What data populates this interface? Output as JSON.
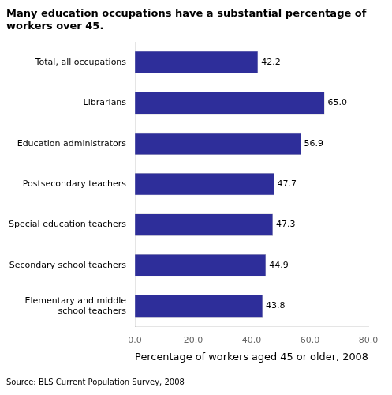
{
  "chart_data": {
    "type": "bar",
    "orientation": "horizontal",
    "title": "Many education occupations have a substantial percentage of\nworkers over 45.",
    "categories": [
      "Elementary and middle\nschool teachers",
      "Secondary school teachers",
      "Special education teachers",
      "Postsecondary teachers",
      "Education administrators",
      "Librarians",
      "Total, all occupations"
    ],
    "values": [
      43.8,
      44.9,
      47.3,
      47.7,
      56.9,
      65.0,
      42.2
    ],
    "value_labels": [
      "43.8",
      "44.9",
      "47.3",
      "47.7",
      "56.9",
      "65.0",
      "42.2"
    ],
    "color": "#2E2E9A",
    "xlabel": "Percentage of workers aged 45 or older, 2008",
    "xlim": [
      0,
      80
    ],
    "xticks": [
      {
        "value": 0,
        "label": "0.0"
      },
      {
        "value": 20,
        "label": "20.0"
      },
      {
        "value": 40,
        "label": "40.0"
      },
      {
        "value": 60,
        "label": "60.0"
      },
      {
        "value": 80,
        "label": "80.0"
      }
    ],
    "annotations": [
      "Source: BLS Current Population Survey, 2008"
    ],
    "data_labels": true,
    "grid": false
  }
}
